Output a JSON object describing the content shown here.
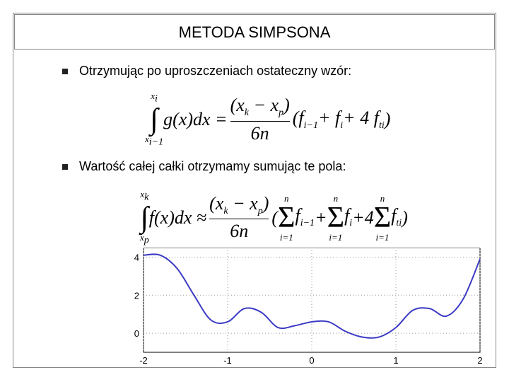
{
  "title": "METODA SIMPSONA",
  "bullets": [
    "Otrzymując po uproszczeniach ostateczny wzór:",
    "Wartość całej całki otrzymamy sumując te pola:"
  ],
  "formula_1": {
    "upper": {
      "t": "x",
      "s": "i"
    },
    "lower": {
      "t": "x",
      "s": "i−1"
    },
    "integrand": "g(x)dx =",
    "numerator": [
      {
        "t": "(x",
        "s": "k"
      },
      {
        "t": " − x",
        "s": "p"
      },
      {
        "t": ")"
      }
    ],
    "denominator": "6n",
    "tail": [
      {
        "t": "(f",
        "s": "i−1"
      },
      {
        "t": " + f",
        "s": "i"
      },
      {
        "t": " + 4 f",
        "s": "ti"
      },
      {
        "t": ")"
      }
    ]
  },
  "formula_2": {
    "upper": {
      "t": "x",
      "s": "k"
    },
    "lower": {
      "t": "x",
      "s": "p"
    },
    "integrand": "f(x)dx ≈",
    "numerator": [
      {
        "t": "(x",
        "s": "k"
      },
      {
        "t": " − x",
        "s": "p"
      },
      {
        "t": ")"
      }
    ],
    "denominator": "6n",
    "tail": [
      {
        "t": "("
      },
      {
        "sum": "Σ",
        "over": "n",
        "under": "i=1"
      },
      {
        "t": "f",
        "s": "i−1"
      },
      {
        "t": " + "
      },
      {
        "sum": "Σ",
        "over": "n",
        "under": "i=1"
      },
      {
        "t": "f",
        "s": "i"
      },
      {
        "t": " +4"
      },
      {
        "sum": "Σ",
        "over": "n",
        "under": "i=1"
      },
      {
        "t": "f",
        "s": "ti"
      },
      {
        "t": ")"
      }
    ]
  },
  "chart_data": {
    "type": "line",
    "color": "#3b3bc4",
    "grid": true,
    "x": [
      -2.0,
      -1.8,
      -1.6,
      -1.4,
      -1.2,
      -1.0,
      -0.8,
      -0.6,
      -0.4,
      -0.2,
      0.0,
      0.2,
      0.4,
      0.6,
      0.8,
      1.0,
      1.2,
      1.4,
      1.6,
      1.8,
      2.0
    ],
    "values": [
      4.1,
      4.1,
      3.4,
      2.0,
      0.7,
      0.6,
      1.3,
      1.1,
      0.3,
      0.4,
      0.6,
      0.6,
      0.1,
      -0.2,
      -0.2,
      0.3,
      1.2,
      1.3,
      0.9,
      1.8,
      3.9
    ],
    "xlim": [
      -2,
      2
    ],
    "ylim": [
      -1,
      4.5
    ],
    "xticks": [
      -2,
      -1,
      0,
      1,
      2
    ],
    "yticks": [
      0,
      2,
      4
    ]
  }
}
